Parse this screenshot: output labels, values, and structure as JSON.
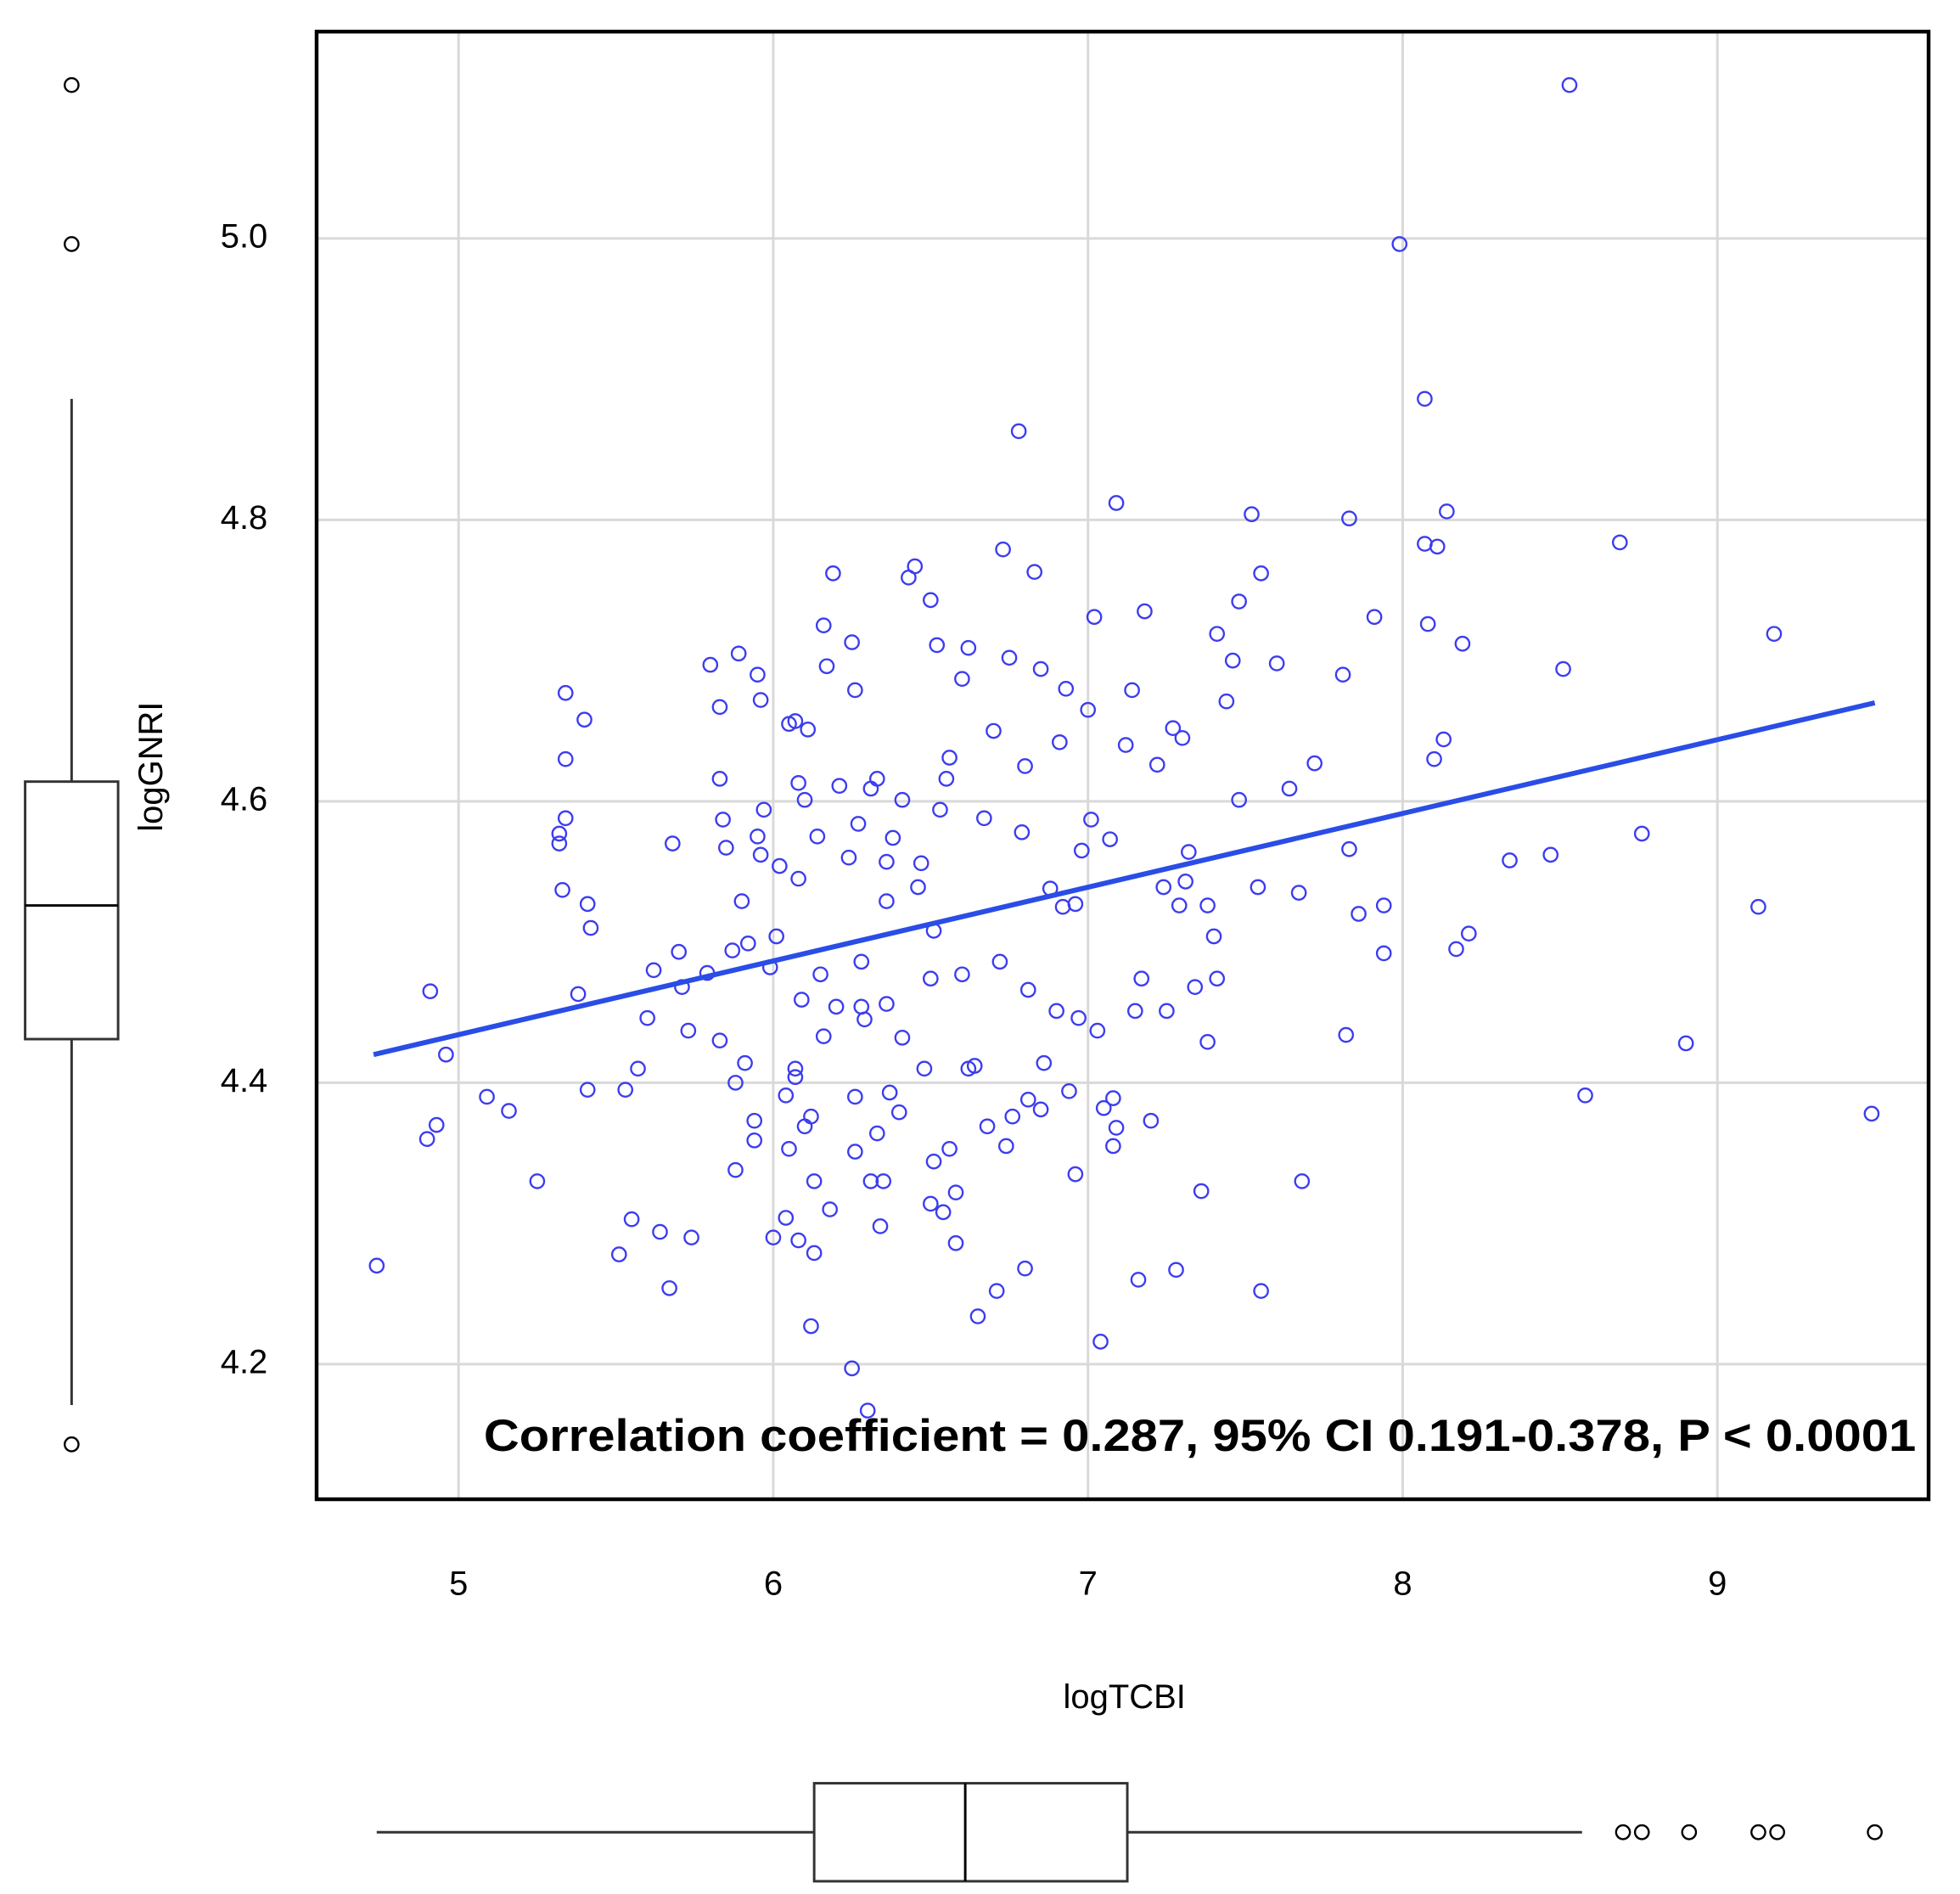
{
  "chart_data": {
    "type": "scatter",
    "x_label": "logTCBI",
    "y_label": "logGNRI",
    "annotation": "Correlation coefficient = 0.287, 95% CI 0.191-0.378, P < 0.0001",
    "xlim": [
      4.549,
      9.671
    ],
    "ylim": [
      4.104,
      5.147
    ],
    "xticks": [
      5,
      6,
      7,
      8,
      9
    ],
    "yticks": [
      {
        "value": 5,
        "label": "5.0"
      },
      4.8,
      4.6,
      4.4,
      4.2
    ],
    "grid": true,
    "series": [
      {
        "color": "#3c3cf0",
        "x": [
          4.74,
          4.91,
          4.9,
          4.93,
          4.96,
          5.09,
          5.16,
          5.25,
          5.34,
          5.34,
          5.34,
          5.32,
          5.32,
          5.33,
          5.38,
          5.4,
          5.41,
          5.42,
          5.41,
          5.51,
          5.53,
          5.55,
          5.57,
          5.6,
          5.62,
          5.64,
          5.67,
          5.68,
          5.7,
          5.71,
          5.73,
          5.74,
          5.79,
          5.8,
          5.83,
          5.83,
          5.83,
          5.84,
          5.85,
          5.87,
          5.88,
          5.88,
          5.89,
          5.9,
          5.91,
          5.92,
          5.94,
          5.94,
          5.95,
          5.96,
          5.95,
          5.96,
          5.97,
          5.99,
          6.0,
          6.01,
          6.02,
          6.04,
          6.04,
          6.05,
          6.05,
          6.07,
          6.07,
          6.07,
          6.08,
          6.08,
          6.08,
          6.09,
          6.1,
          6.1,
          6.11,
          6.12,
          6.12,
          6.13,
          6.13,
          6.14,
          6.15,
          6.16,
          6.16,
          6.17,
          6.19,
          6.18,
          6.2,
          6.21,
          6.24,
          6.25,
          6.25,
          6.26,
          6.26,
          6.26,
          6.27,
          6.28,
          6.28,
          6.29,
          6.3,
          6.31,
          6.31,
          6.33,
          6.33,
          6.34,
          6.35,
          6.36,
          6.36,
          6.36,
          6.37,
          6.38,
          6.4,
          6.41,
          6.41,
          6.43,
          6.45,
          6.46,
          6.47,
          6.48,
          6.5,
          6.5,
          6.5,
          6.51,
          6.51,
          6.52,
          6.53,
          6.54,
          6.55,
          6.56,
          6.56,
          6.58,
          6.58,
          6.6,
          6.6,
          6.62,
          6.62,
          6.64,
          6.65,
          6.67,
          6.68,
          6.7,
          6.71,
          6.72,
          6.73,
          6.74,
          6.75,
          6.76,
          6.78,
          6.79,
          6.8,
          6.8,
          6.81,
          6.81,
          6.83,
          6.85,
          6.85,
          6.86,
          6.88,
          6.9,
          6.91,
          6.92,
          6.93,
          6.94,
          6.96,
          6.96,
          6.97,
          6.98,
          7.0,
          7.01,
          7.02,
          7.03,
          7.04,
          7.05,
          7.07,
          7.08,
          7.09,
          7.09,
          7.08,
          7.12,
          7.14,
          7.15,
          7.16,
          7.17,
          7.18,
          7.2,
          7.22,
          7.24,
          7.25,
          7.27,
          7.28,
          7.29,
          7.3,
          7.31,
          7.32,
          7.34,
          7.36,
          7.38,
          7.38,
          7.4,
          7.41,
          7.41,
          7.44,
          7.46,
          7.48,
          7.48,
          7.52,
          7.54,
          7.55,
          7.55,
          7.6,
          7.64,
          7.67,
          7.68,
          7.72,
          7.81,
          7.82,
          7.83,
          7.83,
          7.86,
          7.91,
          7.94,
          7.94,
          7.99,
          8.07,
          8.07,
          8.08,
          8.11,
          8.1,
          8.13,
          8.14,
          8.19,
          8.17,
          8.21,
          8.34,
          8.47,
          8.51,
          8.53,
          8.58,
          8.69,
          8.76,
          8.9,
          9.13,
          9.18,
          9.49
        ],
        "values": [
          4.27,
          4.465,
          4.36,
          4.37,
          4.42,
          4.39,
          4.38,
          4.33,
          4.677,
          4.63,
          4.588,
          4.577,
          4.57,
          4.537,
          4.463,
          4.658,
          4.527,
          4.51,
          4.395,
          4.278,
          4.395,
          4.303,
          4.41,
          4.446,
          4.48,
          4.294,
          4.254,
          4.57,
          4.493,
          4.468,
          4.437,
          4.29,
          4.478,
          4.697,
          4.43,
          4.667,
          4.616,
          4.587,
          4.567,
          4.494,
          4.4,
          4.338,
          4.705,
          4.529,
          4.414,
          4.499,
          4.373,
          4.359,
          4.69,
          4.672,
          4.575,
          4.562,
          4.594,
          4.482,
          4.29,
          4.504,
          4.554,
          4.391,
          4.304,
          4.353,
          4.655,
          4.657,
          4.41,
          4.404,
          4.545,
          4.288,
          4.613,
          4.459,
          4.369,
          4.601,
          4.651,
          4.227,
          4.376,
          4.279,
          4.33,
          4.575,
          4.477,
          4.725,
          4.433,
          4.696,
          4.762,
          4.31,
          4.454,
          4.611,
          4.56,
          4.197,
          4.713,
          4.679,
          4.39,
          4.351,
          4.584,
          4.454,
          4.486,
          4.445,
          4.167,
          4.609,
          4.33,
          4.364,
          4.616,
          4.298,
          4.33,
          4.456,
          4.529,
          4.557,
          4.393,
          4.574,
          4.379,
          4.601,
          4.432,
          4.759,
          4.767,
          4.539,
          4.556,
          4.41,
          4.474,
          4.314,
          4.743,
          4.344,
          4.508,
          4.711,
          4.594,
          4.308,
          4.616,
          4.353,
          4.631,
          4.322,
          4.286,
          4.477,
          4.687,
          4.41,
          4.709,
          4.412,
          4.234,
          4.588,
          4.369,
          4.65,
          4.252,
          4.486,
          4.779,
          4.355,
          4.702,
          4.376,
          4.863,
          4.578,
          4.625,
          4.268,
          4.466,
          4.388,
          4.763,
          4.381,
          4.694,
          4.414,
          4.538,
          4.451,
          4.642,
          4.525,
          4.68,
          4.394,
          4.335,
          4.527,
          4.446,
          4.565,
          4.665,
          4.587,
          4.731,
          4.437,
          4.216,
          4.382,
          4.573,
          4.389,
          4.812,
          4.368,
          4.355,
          4.64,
          4.679,
          4.451,
          4.26,
          4.474,
          4.735,
          4.373,
          4.626,
          4.539,
          4.451,
          4.652,
          4.267,
          4.526,
          4.645,
          4.543,
          4.564,
          4.468,
          4.323,
          4.526,
          4.429,
          4.504,
          4.719,
          4.474,
          4.671,
          4.7,
          4.601,
          4.742,
          4.804,
          4.539,
          4.762,
          4.252,
          4.698,
          4.609,
          4.535,
          4.33,
          4.627,
          4.69,
          4.434,
          4.801,
          4.566,
          4.52,
          4.731,
          4.492,
          4.526,
          4.996,
          4.886,
          4.783,
          4.726,
          4.781,
          4.63,
          4.644,
          4.806,
          4.712,
          4.495,
          4.506,
          4.558,
          4.562,
          4.694,
          5.109,
          4.391,
          4.784,
          4.577,
          4.428,
          4.525,
          4.719,
          4.378
        ]
      }
    ],
    "regression_line": {
      "color": "#2a4de6",
      "x": [
        4.73,
        9.5
      ],
      "values": [
        4.42,
        4.67
      ]
    },
    "y_boxplot": {
      "whisker_low": 4.171,
      "q1": 4.431,
      "median": 4.526,
      "q3": 4.614,
      "whisker_high": 4.886,
      "outliers": [
        5.109,
        4.996,
        4.143
      ]
    },
    "x_boxplot": {
      "whisker_low": 4.74,
      "q1": 6.13,
      "median": 6.61,
      "q3": 7.125,
      "whisker_high": 8.57,
      "outliers": [
        8.7,
        8.76,
        8.91,
        9.13,
        9.19,
        9.5
      ]
    }
  }
}
